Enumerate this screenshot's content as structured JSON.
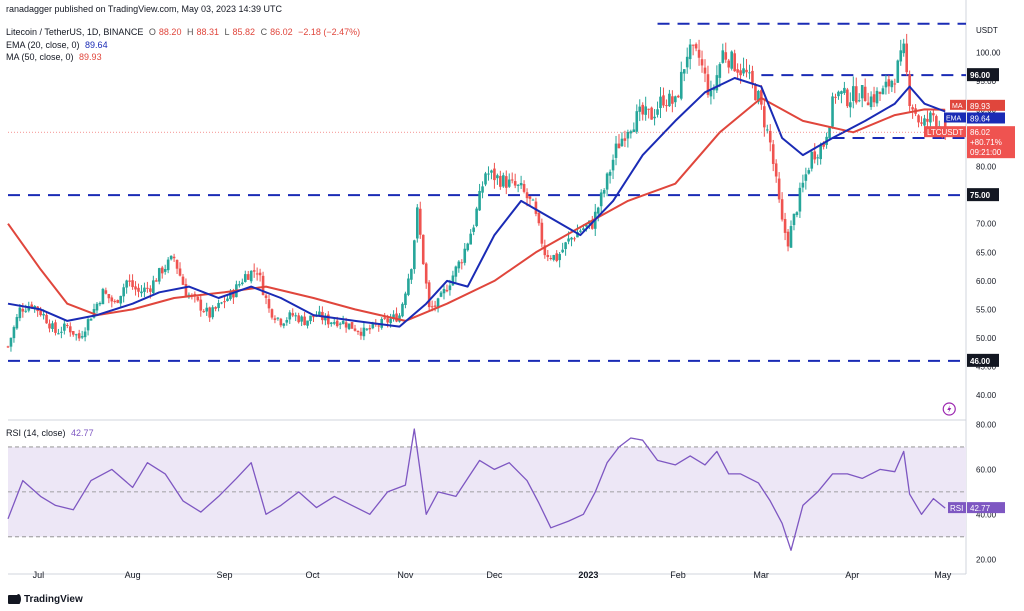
{
  "header": {
    "published": "ranadagger published on TradingView.com, May 03, 2023 14:39 UTC",
    "symbol": "Litecoin / TetherUS, 1D, BINANCE",
    "ohlc": {
      "o_label": "O",
      "o": "88.20",
      "h_label": "H",
      "h": "88.31",
      "l_label": "L",
      "l": "85.82",
      "c_label": "C",
      "c": "86.02",
      "change": "−2.18 (−2.47%)"
    },
    "ema_label": "EMA (20, close, 0)",
    "ema_value": "89.64",
    "ma_label": "MA (50, close, 0)",
    "ma_value": "89.93",
    "rsi_label": "RSI (14, close)",
    "rsi_value": "42.77"
  },
  "brand": "TradingView",
  "colors": {
    "up": "#26a69a",
    "down": "#ef5350",
    "ema": "#1a2bb5",
    "ma": "#e0463c",
    "rsi": "#7e57c2",
    "level": "#1a2bb5",
    "rsi_band": "#ede7f6"
  },
  "chart_data": [
    {
      "type": "candlestick",
      "title": "Litecoin / TetherUS, 1D, BINANCE",
      "ylabel": "USDT",
      "ylim": [
        36,
        106
      ],
      "yticks": [
        40,
        45,
        50,
        55,
        60,
        65,
        70,
        75,
        80,
        85,
        90,
        95,
        100,
        105
      ],
      "x_ticks": [
        "Jul",
        "Aug",
        "Sep",
        "Oct",
        "Nov",
        "Dec",
        "2023",
        "Feb",
        "Mar",
        "Apr",
        "May"
      ],
      "horizontal_levels": [
        105,
        96,
        85,
        75,
        46
      ],
      "level_labels": [
        "96.00",
        "85.00",
        "75.00",
        "46.00"
      ],
      "price_tags": {
        "ma": "89.93",
        "ema": "89.64",
        "last": "86.02",
        "last_change": "+80.71%",
        "countdown": "09:21:00",
        "symbol": "LTCUSDT"
      },
      "series": [
        {
          "name": "EMA",
          "period": 20
        },
        {
          "name": "MA",
          "period": 50
        }
      ],
      "close_path": [
        [
          "Jun 20",
          48.5
        ],
        [
          "Jun 24",
          55
        ],
        [
          "Jun 28",
          56
        ],
        [
          "Jul 2",
          54
        ],
        [
          "Jul 6",
          51
        ],
        [
          "Jul 10",
          52
        ],
        [
          "Jul 14",
          50
        ],
        [
          "Jul 18",
          54
        ],
        [
          "Jul 22",
          58
        ],
        [
          "Jul 26",
          56
        ],
        [
          "Jul 30",
          60
        ],
        [
          "Aug 3",
          58
        ],
        [
          "Aug 7",
          59
        ],
        [
          "Aug 11",
          62
        ],
        [
          "Aug 15",
          64
        ],
        [
          "Aug 19",
          58
        ],
        [
          "Aug 23",
          56
        ],
        [
          "Aug 27",
          54
        ],
        [
          "Aug 31",
          56
        ],
        [
          "Sep 4",
          58
        ],
        [
          "Sep 8",
          61
        ],
        [
          "Sep 12",
          62
        ],
        [
          "Sep 16",
          55
        ],
        [
          "Sep 20",
          53
        ],
        [
          "Sep 24",
          54
        ],
        [
          "Sep 28",
          53
        ],
        [
          "Oct 2",
          54
        ],
        [
          "Oct 6",
          53
        ],
        [
          "Oct 10",
          53
        ],
        [
          "Oct 14",
          52
        ],
        [
          "Oct 18",
          51
        ],
        [
          "Oct 22",
          52
        ],
        [
          "Oct 26",
          53
        ],
        [
          "Oct 30",
          54
        ],
        [
          "Nov 3",
          63
        ],
        [
          "Nov 5",
          72
        ],
        [
          "Nov 9",
          55
        ],
        [
          "Nov 12",
          56
        ],
        [
          "Nov 16",
          60
        ],
        [
          "Nov 20",
          64
        ],
        [
          "Nov 24",
          70
        ],
        [
          "Nov 28",
          79
        ],
        [
          "Dec 2",
          78
        ],
        [
          "Dec 6",
          77
        ],
        [
          "Dec 10",
          76
        ],
        [
          "Dec 14",
          73
        ],
        [
          "Dec 18",
          65
        ],
        [
          "Dec 22",
          64
        ],
        [
          "Dec 26",
          67
        ],
        [
          "Dec 30",
          69
        ],
        [
          "Jan 3",
          70
        ],
        [
          "Jan 7",
          76
        ],
        [
          "Jan 11",
          83
        ],
        [
          "Jan 15",
          87
        ],
        [
          "Jan 19",
          89
        ],
        [
          "Jan 23",
          89
        ],
        [
          "Jan 27",
          92
        ],
        [
          "Jan 31",
          91
        ],
        [
          "Feb 4",
          100
        ],
        [
          "Feb 8",
          99
        ],
        [
          "Feb 12",
          92
        ],
        [
          "Feb 16",
          100
        ],
        [
          "Feb 20",
          98
        ],
        [
          "Feb 24",
          96
        ],
        [
          "Feb 28",
          92
        ],
        [
          "Mar 4",
          84
        ],
        [
          "Mar 8",
          70
        ],
        [
          "Mar 10",
          67
        ],
        [
          "Mar 14",
          75
        ],
        [
          "Mar 18",
          82
        ],
        [
          "Mar 22",
          84
        ],
        [
          "Mar 26",
          93
        ],
        [
          "Mar 30",
          92
        ],
        [
          "Apr 3",
          93
        ],
        [
          "Apr 7",
          92
        ],
        [
          "Apr 11",
          93
        ],
        [
          "Apr 15",
          96
        ],
        [
          "Apr 18",
          100
        ],
        [
          "Apr 20",
          92
        ],
        [
          "Apr 24",
          87
        ],
        [
          "Apr 28",
          89
        ],
        [
          "May 2",
          86
        ]
      ],
      "ema_path": [
        [
          "Jun 20",
          56
        ],
        [
          "Jul 1",
          55
        ],
        [
          "Jul 10",
          53
        ],
        [
          "Jul 20",
          54
        ],
        [
          "Aug 1",
          56
        ],
        [
          "Aug 10",
          58
        ],
        [
          "Aug 20",
          59
        ],
        [
          "Aug 30",
          57
        ],
        [
          "Sep 10",
          59
        ],
        [
          "Sep 20",
          57
        ],
        [
          "Oct 1",
          54
        ],
        [
          "Oct 15",
          53
        ],
        [
          "Oct 30",
          52
        ],
        [
          "Nov 8",
          56
        ],
        [
          "Nov 15",
          60
        ],
        [
          "Nov 22",
          59
        ],
        [
          "Dec 1",
          68
        ],
        [
          "Dec 10",
          74
        ],
        [
          "Dec 20",
          71
        ],
        [
          "Dec 30",
          68
        ],
        [
          "Jan 10",
          74
        ],
        [
          "Jan 20",
          82
        ],
        [
          "Jan 31",
          88
        ],
        [
          "Feb 10",
          93
        ],
        [
          "Feb 20",
          95.5
        ],
        [
          "Mar 1",
          94
        ],
        [
          "Mar 8",
          85
        ],
        [
          "Mar 15",
          82
        ],
        [
          "Mar 25",
          85
        ],
        [
          "Apr 5",
          88
        ],
        [
          "Apr 15",
          91
        ],
        [
          "Apr 20",
          94
        ],
        [
          "Apr 25",
          91
        ],
        [
          "May 2",
          89.64
        ]
      ],
      "ma_path": [
        [
          "Jun 20",
          70
        ],
        [
          "Jul 1",
          62
        ],
        [
          "Jul 10",
          56
        ],
        [
          "Jul 20",
          54
        ],
        [
          "Aug 1",
          55
        ],
        [
          "Aug 15",
          57
        ],
        [
          "Sep 1",
          58
        ],
        [
          "Sep 15",
          59
        ],
        [
          "Oct 1",
          57
        ],
        [
          "Oct 15",
          55
        ],
        [
          "Nov 1",
          53
        ],
        [
          "Nov 15",
          56
        ],
        [
          "Dec 1",
          60
        ],
        [
          "Dec 15",
          65
        ],
        [
          "Jan 1",
          70
        ],
        [
          "Jan 15",
          74
        ],
        [
          "Jan 31",
          77
        ],
        [
          "Feb 15",
          86
        ],
        [
          "Mar 1",
          92
        ],
        [
          "Mar 15",
          88
        ],
        [
          "Apr 1",
          86
        ],
        [
          "Apr 15",
          89
        ],
        [
          "Apr 25",
          90
        ],
        [
          "May 2",
          89.93
        ]
      ]
    },
    {
      "type": "line",
      "title": "RSI (14, close)",
      "ylim": [
        17,
        82
      ],
      "yticks": [
        20,
        40,
        60,
        80
      ],
      "band": [
        30,
        70
      ],
      "midline": 50,
      "last_value": "42.77",
      "label": "RSI",
      "points": [
        [
          "Jun 20",
          38
        ],
        [
          "Jun 25",
          55
        ],
        [
          "Jul 1",
          48
        ],
        [
          "Jul 6",
          44
        ],
        [
          "Jul 12",
          42
        ],
        [
          "Jul 18",
          55
        ],
        [
          "Jul 25",
          60
        ],
        [
          "Aug 1",
          52
        ],
        [
          "Aug 6",
          63
        ],
        [
          "Aug 12",
          58
        ],
        [
          "Aug 18",
          46
        ],
        [
          "Aug 24",
          41
        ],
        [
          "Aug 30",
          48
        ],
        [
          "Sep 5",
          56
        ],
        [
          "Sep 10",
          63
        ],
        [
          "Sep 15",
          40
        ],
        [
          "Sep 20",
          44
        ],
        [
          "Sep 26",
          50
        ],
        [
          "Oct 2",
          43
        ],
        [
          "Oct 8",
          48
        ],
        [
          "Oct 14",
          44
        ],
        [
          "Oct 20",
          40
        ],
        [
          "Oct 26",
          50
        ],
        [
          "Nov 1",
          53
        ],
        [
          "Nov 4",
          78
        ],
        [
          "Nov 8",
          40
        ],
        [
          "Nov 12",
          50
        ],
        [
          "Nov 18",
          48
        ],
        [
          "Nov 22",
          56
        ],
        [
          "Nov 26",
          64
        ],
        [
          "Dec 1",
          60
        ],
        [
          "Dec 6",
          63
        ],
        [
          "Dec 12",
          55
        ],
        [
          "Dec 16",
          45
        ],
        [
          "Dec 20",
          34
        ],
        [
          "Dec 26",
          37
        ],
        [
          "Dec 31",
          40
        ],
        [
          "Jan 4",
          50
        ],
        [
          "Jan 8",
          63
        ],
        [
          "Jan 12",
          70
        ],
        [
          "Jan 16",
          74
        ],
        [
          "Jan 20",
          73
        ],
        [
          "Jan 25",
          64
        ],
        [
          "Jan 31",
          62
        ],
        [
          "Feb 5",
          66
        ],
        [
          "Feb 10",
          62
        ],
        [
          "Feb 14",
          68
        ],
        [
          "Feb 18",
          58
        ],
        [
          "Feb 22",
          58
        ],
        [
          "Feb 28",
          54
        ],
        [
          "Mar 4",
          46
        ],
        [
          "Mar 8",
          36
        ],
        [
          "Mar 11",
          24
        ],
        [
          "Mar 15",
          44
        ],
        [
          "Mar 20",
          50
        ],
        [
          "Mar 25",
          58
        ],
        [
          "Mar 30",
          58
        ],
        [
          "Apr 4",
          56
        ],
        [
          "Apr 10",
          60
        ],
        [
          "Apr 15",
          59
        ],
        [
          "Apr 18",
          68
        ],
        [
          "Apr 20",
          49
        ],
        [
          "Apr 24",
          40
        ],
        [
          "Apr 28",
          47
        ],
        [
          "May 2",
          42.77
        ]
      ]
    }
  ]
}
